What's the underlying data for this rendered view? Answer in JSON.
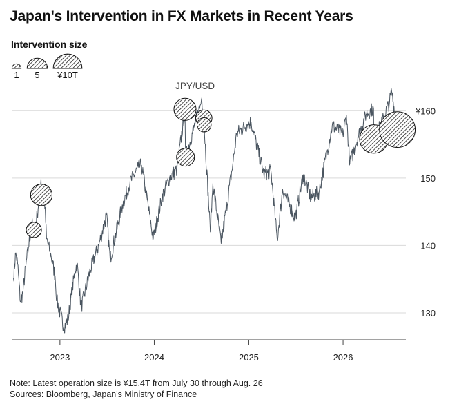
{
  "title": "Japan's Intervention in FX Markets in Recent Years",
  "legend": {
    "title": "Intervention size",
    "items": [
      {
        "label": "1",
        "size": 1
      },
      {
        "label": "5",
        "size": 5
      },
      {
        "label": "¥10T",
        "size": 10
      }
    ]
  },
  "footer": {
    "note": "Note: Latest operation size is ¥15.4T from July 30 through Aug. 26",
    "sources": "Sources: Bloomberg, Japan's Ministry of Finance"
  },
  "colors": {
    "line": "#4a5560",
    "grid": "#d9d9d9",
    "bubble_stroke": "#111111",
    "text": "#222222"
  },
  "chart_data": {
    "type": "line",
    "series": [
      {
        "name": "JPY/USD",
        "points": [
          [
            "2022-07-05",
            135.2
          ],
          [
            "2022-07-14",
            138.9
          ],
          [
            "2022-07-21",
            137.3
          ],
          [
            "2022-08-01",
            131.6
          ],
          [
            "2022-08-10",
            132.9
          ],
          [
            "2022-08-22",
            137.0
          ],
          [
            "2022-09-01",
            139.7
          ],
          [
            "2022-09-14",
            143.2
          ],
          [
            "2022-09-22",
            142.3
          ],
          [
            "2022-10-05",
            144.5
          ],
          [
            "2022-10-20",
            149.9
          ],
          [
            "2022-10-21",
            147.5
          ],
          [
            "2022-10-31",
            148.5
          ],
          [
            "2022-11-10",
            141.0
          ],
          [
            "2022-11-28",
            138.4
          ],
          [
            "2022-12-13",
            135.5
          ],
          [
            "2022-12-20",
            131.8
          ],
          [
            "2023-01-16",
            127.9
          ],
          [
            "2023-02-01",
            129.0
          ],
          [
            "2023-02-28",
            136.2
          ],
          [
            "2023-03-08",
            137.4
          ],
          [
            "2023-03-24",
            130.7
          ],
          [
            "2023-04-28",
            136.3
          ],
          [
            "2023-05-31",
            140.0
          ],
          [
            "2023-06-30",
            144.5
          ],
          [
            "2023-07-14",
            138.0
          ],
          [
            "2023-08-31",
            146.0
          ],
          [
            "2023-09-29",
            149.3
          ],
          [
            "2023-10-31",
            151.6
          ],
          [
            "2023-11-13",
            151.9
          ],
          [
            "2023-12-28",
            141.0
          ],
          [
            "2024-01-31",
            147.2
          ],
          [
            "2024-02-29",
            150.0
          ],
          [
            "2024-03-29",
            151.3
          ],
          [
            "2024-04-29",
            160.2
          ],
          [
            "2024-05-01",
            153.1
          ],
          [
            "2024-05-31",
            157.1
          ],
          [
            "2024-06-28",
            160.9
          ],
          [
            "2024-07-03",
            161.9
          ],
          [
            "2024-07-11",
            158.9
          ],
          [
            "2024-07-12",
            157.9
          ],
          [
            "2024-08-05",
            142.0
          ],
          [
            "2024-08-15",
            149.2
          ],
          [
            "2024-09-16",
            140.3
          ],
          [
            "2024-10-31",
            152.0
          ],
          [
            "2024-11-15",
            156.6
          ],
          [
            "2024-12-26",
            158.0
          ],
          [
            "2025-01-10",
            158.3
          ],
          [
            "2025-02-28",
            150.6
          ],
          [
            "2025-03-28",
            151.0
          ],
          [
            "2025-04-21",
            140.8
          ],
          [
            "2025-05-12",
            148.3
          ],
          [
            "2025-06-30",
            144.0
          ],
          [
            "2025-07-31",
            150.5
          ],
          [
            "2025-08-29",
            147.1
          ],
          [
            "2025-09-30",
            147.9
          ],
          [
            "2025-10-31",
            154.0
          ],
          [
            "2025-11-20",
            157.8
          ],
          [
            "2025-12-31",
            156.5
          ],
          [
            "2026-01-14",
            159.3
          ],
          [
            "2026-01-27",
            152.1
          ],
          [
            "2026-02-27",
            156.0
          ],
          [
            "2026-03-31",
            159.5
          ],
          [
            "2026-04-29",
            160.3
          ],
          [
            "2026-04-30",
            155.8
          ],
          [
            "2026-05-29",
            158.0
          ],
          [
            "2026-06-30",
            161.3
          ],
          [
            "2026-07-08",
            162.9
          ],
          [
            "2026-07-30",
            157.2
          ],
          [
            "2026-08-26",
            159.5
          ]
        ]
      }
    ],
    "interventions": [
      {
        "date": "2022-09-22",
        "size": 2.8
      },
      {
        "date": "2022-10-21",
        "size": 5.6
      },
      {
        "date": "2024-04-29",
        "size": 5.9
      },
      {
        "date": "2024-05-01",
        "size": 3.9
      },
      {
        "date": "2024-07-11",
        "size": 3.2
      },
      {
        "date": "2024-07-12",
        "size": 2.4
      },
      {
        "date": "2026-04-30",
        "size": 9.8
      },
      {
        "date": "2026-07-30",
        "size": 15.4
      }
    ],
    "annotations": [
      {
        "text": "JPY/USD",
        "date": "2024-06-15",
        "value": 163.5
      }
    ],
    "xaxis": {
      "ticks": [
        {
          "date": "2023-01-01",
          "label": "2023"
        },
        {
          "date": "2024-01-01",
          "label": "2024"
        },
        {
          "date": "2025-01-01",
          "label": "2025"
        },
        {
          "date": "2026-01-01",
          "label": "2026"
        }
      ],
      "range": [
        "2022-07-01",
        "2026-09-01"
      ]
    },
    "yaxis": {
      "ticks": [
        {
          "value": 130,
          "label": "130"
        },
        {
          "value": 140,
          "label": "140"
        },
        {
          "value": 150,
          "label": "150"
        },
        {
          "value": 160,
          "label": "¥160"
        }
      ],
      "range": [
        126,
        167
      ],
      "position": "right"
    },
    "grid": true,
    "title": "Japan's Intervention in FX Markets in Recent Years"
  }
}
